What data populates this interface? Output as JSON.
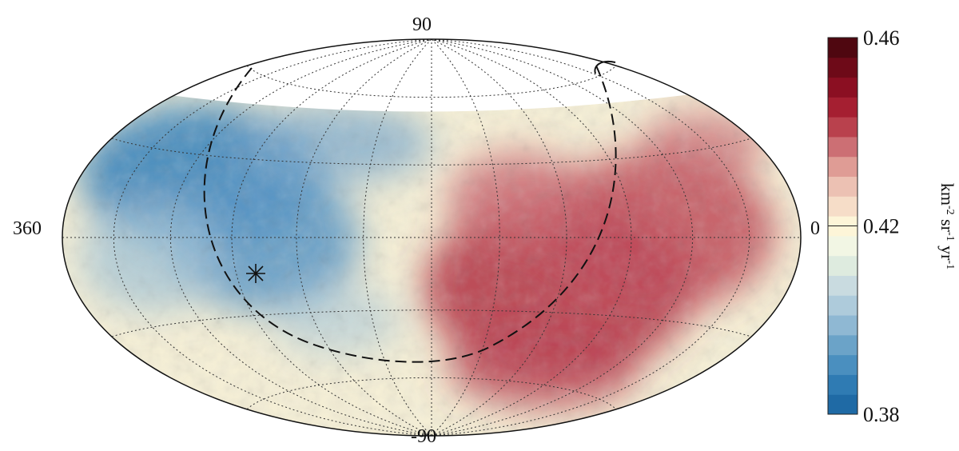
{
  "chart_data": {
    "type": "heatmap",
    "projection": "hammer-aitoff",
    "title": "",
    "axes": {
      "lat_top_label": "90",
      "lat_bottom_label": "-90",
      "lon_left_label": "360",
      "lon_right_label": "0",
      "graticule": true
    },
    "colorbar": {
      "min": 0.38,
      "mid": 0.42,
      "max": 0.46,
      "tick_labels": [
        "0.38",
        "0.42",
        "0.46"
      ],
      "unit_parts": [
        "km",
        "-2",
        " sr",
        "-1",
        " yr",
        "-1"
      ],
      "colors": [
        "#1f6aa5",
        "#2f7bb3",
        "#4a8fbf",
        "#6ba3c8",
        "#8fb8d3",
        "#aecbdb",
        "#c9dbe0",
        "#deebdf",
        "#f2f6e4",
        "#fdf5d8",
        "#f6ddc8",
        "#ecc1b3",
        "#df9c95",
        "#cc6f74",
        "#b9414d",
        "#a51f31",
        "#8b0f22",
        "#6e0a18",
        "#4f0710"
      ]
    },
    "field": {
      "description_values": [
        {
          "region": "northern-polar-cap",
          "value": null
        },
        {
          "region": "western-hemisphere",
          "value": 0.39
        },
        {
          "region": "eastern-hemisphere",
          "value": 0.44
        }
      ]
    },
    "annotations": {
      "dashed_circle": true,
      "star_marker": true
    }
  }
}
